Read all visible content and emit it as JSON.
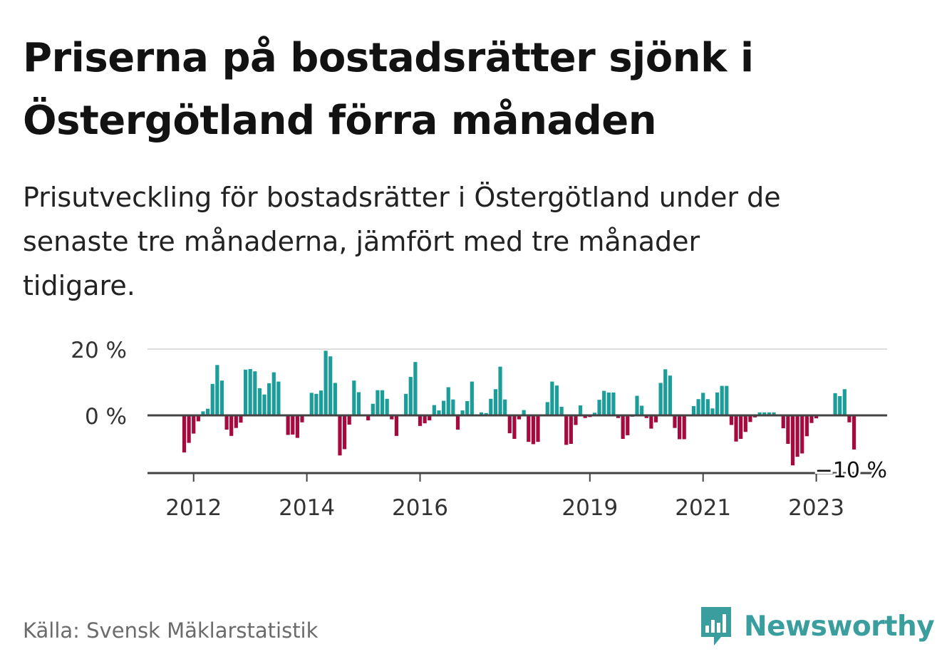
{
  "header": {
    "title_line1": "Priserna på bostadsrätter sjönk i",
    "title_line2": "Östergötland förra månaden",
    "subtitle_line1": "Prisutveckling för bostadsrätter i Östergötland under de",
    "subtitle_line2": "senaste tre månaderna, jämfört med tre månader",
    "subtitle_line3": "tidigare."
  },
  "footer": {
    "source": "Källa: Svensk Mäklarstatistik",
    "brand": "Newsworthy",
    "brand_icon": "bar-chart-speech-bubble-icon"
  },
  "colors": {
    "positive": "#1b9e9a",
    "negative": "#a6093e",
    "brand": "#3a9e9e",
    "grid": "#dddddd",
    "axis": "#444444"
  },
  "chart_data": {
    "type": "bar",
    "title": "",
    "xlabel": "",
    "ylabel": "",
    "ylim": [
      -17,
      20
    ],
    "y_ticks": [
      {
        "value": 20,
        "label": "20 %"
      },
      {
        "value": 0,
        "label": "0 %"
      }
    ],
    "grid": "horizontal",
    "x_ticks": [
      {
        "year": 2012,
        "label": "2012"
      },
      {
        "year": 2014,
        "label": "2014"
      },
      {
        "year": 2016,
        "label": "2016"
      },
      {
        "year": 2019,
        "label": "2019"
      },
      {
        "year": 2021,
        "label": "2021"
      },
      {
        "year": 2023,
        "label": "2023"
      }
    ],
    "start": "2011-11",
    "end": "2024-01",
    "last_value_label": "−10 %",
    "values": [
      -11.2,
      -8.3,
      -5.5,
      -1.8,
      1.2,
      2.0,
      9.5,
      15.2,
      10.5,
      -4.3,
      -6.2,
      -3.8,
      -2.2,
      13.8,
      14.0,
      13.3,
      8.2,
      6.3,
      9.7,
      13.0,
      10.2,
      -0.2,
      -5.9,
      -5.8,
      -6.8,
      -2.1,
      -0.1,
      6.8,
      6.5,
      7.5,
      19.5,
      17.8,
      9.8,
      -12.1,
      -10.2,
      -2.8,
      10.5,
      7.0,
      -0.3,
      -1.5,
      3.5,
      7.6,
      7.6,
      5.0,
      -1.2,
      -6.2,
      0.2,
      6.5,
      11.6,
      16.1,
      -3.2,
      -2.4,
      -1.5,
      3.1,
      1.5,
      4.4,
      8.5,
      4.8,
      -4.3,
      1.5,
      4.3,
      10.2,
      -0.2,
      0.9,
      0.7,
      5.0,
      7.9,
      14.7,
      4.8,
      -5.4,
      -7.1,
      -1.2,
      1.6,
      -8.0,
      -8.7,
      -8.0,
      -0.3,
      4.0,
      10.2,
      9.0,
      2.6,
      -8.9,
      -8.6,
      -2.9,
      3.0,
      -0.8,
      -0.5,
      0.8,
      4.7,
      7.4,
      6.9,
      6.9,
      -0.8,
      -7.1,
      -6.0,
      -0.4,
      5.9,
      2.9,
      -0.8,
      -4.0,
      -2.1,
      9.8,
      13.9,
      12.0,
      -3.8,
      -7.2,
      -7.2,
      -0.3,
      2.8,
      4.9,
      6.8,
      4.9,
      2.1,
      6.9,
      8.9,
      8.9,
      -2.9,
      -7.9,
      -7.1,
      -5.0,
      -2.0,
      -0.6,
      0.9,
      0.9,
      0.9,
      0.9,
      -0.2,
      -3.9,
      -8.6,
      -15.1,
      -12.5,
      -11.5,
      -6.3,
      -2.3,
      -0.9,
      -0.1,
      -0.2,
      -0.3,
      6.7,
      5.8,
      7.9,
      -2.1,
      -10.3
    ]
  }
}
